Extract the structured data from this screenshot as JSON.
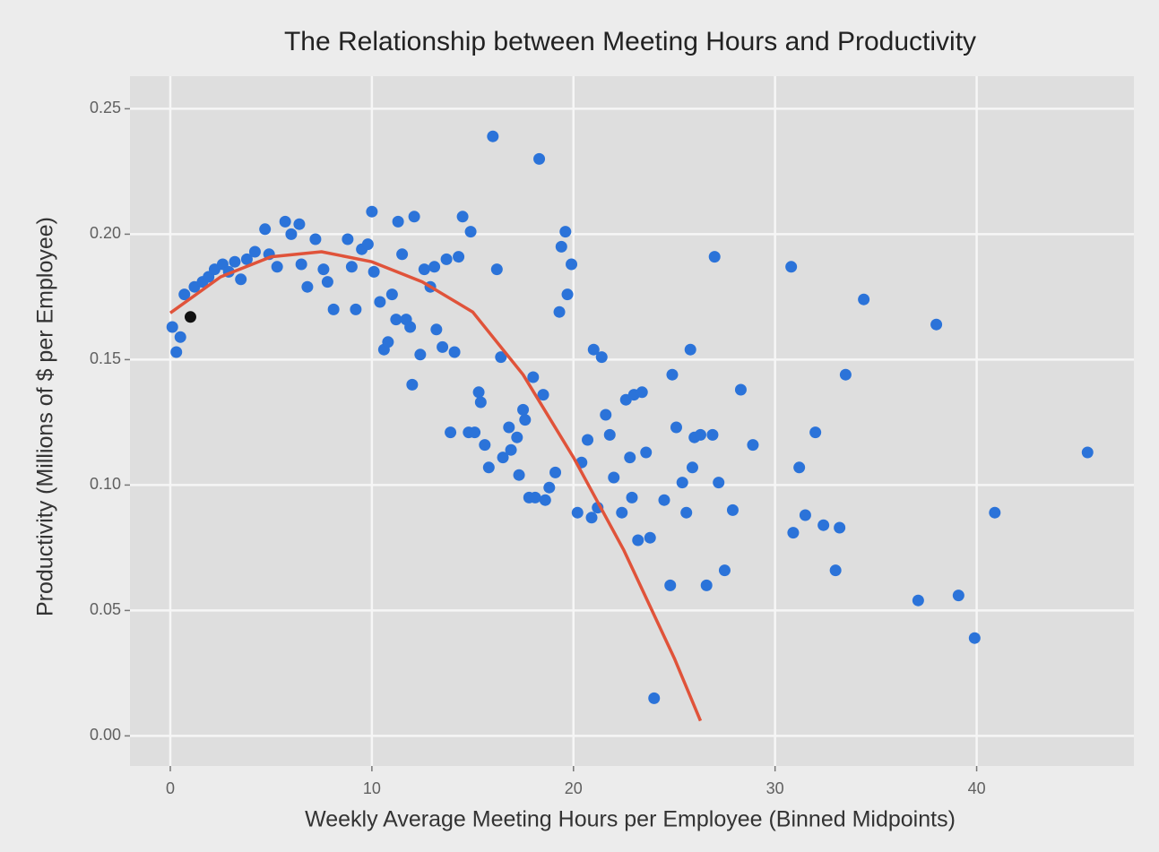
{
  "chart_data": {
    "type": "scatter",
    "title": "The Relationship between Meeting Hours and Productivity",
    "x_label": "Weekly Average Meeting Hours per Employee (Binned Midpoints)",
    "y_label": "Productivity (Millions of $ per Employee)",
    "xlim": [
      -2,
      47.8
    ],
    "ylim": [
      -0.012,
      0.263
    ],
    "xticks": [
      0,
      10,
      20,
      30,
      40
    ],
    "yticks": [
      {
        "value": 0,
        "label": "0.00"
      },
      0.05,
      {
        "value": 0.1,
        "label": "0.10"
      },
      0.15,
      {
        "value": 0.2,
        "label": "0.20"
      },
      0.25
    ],
    "grid": true,
    "series": [
      {
        "type": "scatter",
        "color": "#2b73d9",
        "x": [
          0.1,
          0.3,
          0.5,
          0.7,
          1.2,
          1.6,
          1.9,
          2.2,
          2.6,
          2.9,
          3.2,
          3.5,
          3.8,
          4.2,
          4.7,
          4.9,
          5.3,
          5.7,
          6.0,
          6.4,
          6.5,
          6.8,
          7.2,
          7.6,
          7.8,
          8.1,
          8.8,
          9.0,
          9.2,
          9.5,
          9.8,
          10.0,
          10.1,
          10.4,
          10.6,
          10.8,
          11.0,
          11.2,
          11.3,
          11.5,
          11.7,
          11.9,
          12.0,
          12.1,
          12.4,
          12.6,
          12.9,
          13.1,
          13.2,
          13.5,
          13.7,
          13.9,
          14.1,
          14.3,
          14.5,
          14.8,
          14.9,
          15.1,
          15.3,
          15.4,
          15.6,
          15.8,
          16.0,
          16.2,
          16.4,
          16.5,
          16.8,
          16.9,
          17.2,
          17.3,
          17.5,
          17.6,
          17.8,
          18.0,
          18.1,
          18.3,
          18.5,
          18.6,
          18.8,
          19.1,
          19.3,
          19.4,
          19.6,
          19.7,
          19.9,
          20.2,
          20.4,
          20.7,
          20.9,
          21.0,
          21.2,
          21.4,
          21.6,
          21.8,
          22.0,
          22.4,
          22.6,
          22.8,
          22.9,
          23.0,
          23.2,
          23.4,
          23.6,
          23.8,
          24.0,
          24.5,
          24.8,
          24.9,
          25.1,
          25.4,
          25.6,
          25.8,
          25.9,
          26.0,
          26.3,
          26.6,
          26.9,
          27.0,
          27.2,
          27.5,
          27.9,
          28.3,
          28.9,
          30.8,
          30.9,
          31.2,
          31.5,
          32.0,
          32.4,
          33.0,
          33.2,
          33.5,
          34.4,
          37.1,
          38.0,
          39.1,
          39.9,
          40.9,
          45.5
        ],
        "values": [
          0.163,
          0.153,
          0.159,
          0.176,
          0.179,
          0.181,
          0.183,
          0.186,
          0.188,
          0.185,
          0.189,
          0.182,
          0.19,
          0.193,
          0.202,
          0.192,
          0.187,
          0.205,
          0.2,
          0.204,
          0.188,
          0.179,
          0.198,
          0.186,
          0.181,
          0.17,
          0.198,
          0.187,
          0.17,
          0.194,
          0.196,
          0.209,
          0.185,
          0.173,
          0.154,
          0.157,
          0.176,
          0.166,
          0.205,
          0.192,
          0.166,
          0.163,
          0.14,
          0.207,
          0.152,
          0.186,
          0.179,
          0.187,
          0.162,
          0.155,
          0.19,
          0.121,
          0.153,
          0.191,
          0.207,
          0.121,
          0.201,
          0.121,
          0.137,
          0.133,
          0.116,
          0.107,
          0.239,
          0.186,
          0.151,
          0.111,
          0.123,
          0.114,
          0.119,
          0.104,
          0.13,
          0.126,
          0.095,
          0.143,
          0.095,
          0.23,
          0.136,
          0.094,
          0.099,
          0.105,
          0.169,
          0.195,
          0.201,
          0.176,
          0.188,
          0.089,
          0.109,
          0.118,
          0.087,
          0.154,
          0.091,
          0.151,
          0.128,
          0.12,
          0.103,
          0.089,
          0.134,
          0.111,
          0.095,
          0.136,
          0.078,
          0.137,
          0.113,
          0.079,
          0.015,
          0.094,
          0.06,
          0.144,
          0.123,
          0.101,
          0.089,
          0.154,
          0.107,
          0.119,
          0.12,
          0.06,
          0.12,
          0.191,
          0.101,
          0.066,
          0.09,
          0.138,
          0.116,
          0.187,
          0.081,
          0.107,
          0.088,
          0.121,
          0.084,
          0.066,
          0.083,
          0.144,
          0.174,
          0.054,
          0.164,
          0.056,
          0.039,
          0.089,
          0.113
        ]
      },
      {
        "type": "scatter",
        "color": "#111111",
        "x": [
          1.0
        ],
        "values": [
          0.167
        ]
      },
      {
        "type": "line",
        "color": "#e0533a",
        "x": [
          0,
          2.5,
          5,
          7.5,
          10,
          12.5,
          15,
          17.5,
          20,
          22.5,
          25,
          26.3
        ],
        "values": [
          0.1686,
          0.183,
          0.191,
          0.193,
          0.189,
          0.181,
          0.169,
          0.144,
          0.111,
          0.074,
          0.031,
          0.006
        ]
      }
    ]
  }
}
